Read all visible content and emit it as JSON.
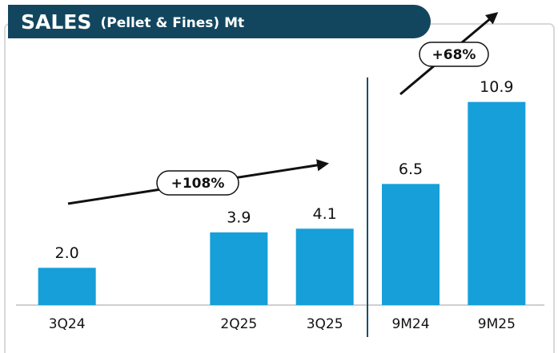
{
  "chart_data": {
    "type": "bar",
    "title": "SALES",
    "subtitle": "(Pellet & Fines) Mt",
    "categories": [
      "3Q24",
      null,
      "2Q25",
      "3Q25",
      "9M24",
      "9M25"
    ],
    "values": [
      2.0,
      null,
      3.9,
      4.1,
      6.5,
      10.9
    ],
    "value_labels": [
      "2.0",
      null,
      "3.9",
      "4.1",
      "6.5",
      "10.9"
    ],
    "color": "#169fd9",
    "ylim": [
      0,
      12
    ],
    "annotations": [
      "+108%",
      "+68%"
    ]
  }
}
